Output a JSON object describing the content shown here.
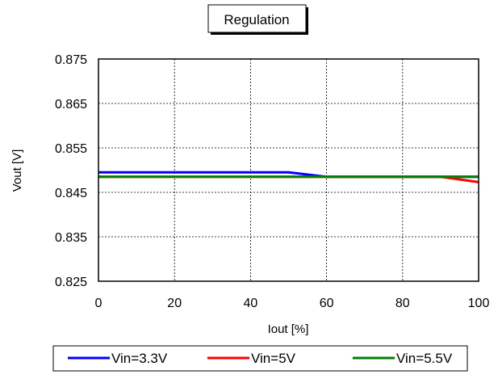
{
  "chart_data": {
    "type": "line",
    "title": "Regulation",
    "xlabel": "Iout [%]",
    "ylabel": "Vout [V]",
    "xlim": [
      0,
      100
    ],
    "ylim": [
      0.825,
      0.875
    ],
    "x_ticks": [
      0,
      20,
      40,
      60,
      80,
      100
    ],
    "y_ticks": [
      0.825,
      0.835,
      0.845,
      0.855,
      0.865,
      0.875
    ],
    "x_tick_labels": [
      "0",
      "20",
      "40",
      "60",
      "80",
      "100"
    ],
    "y_tick_labels": [
      "0.825",
      "0.835",
      "0.845",
      "0.855",
      "0.865",
      "0.875"
    ],
    "grid": true,
    "legend_position": "bottom",
    "series": [
      {
        "name": "Vin=3.3V",
        "color": "#0000ff",
        "x": [
          0,
          10,
          20,
          30,
          40,
          50,
          60,
          70,
          80,
          90,
          100
        ],
        "y": [
          0.8495,
          0.8495,
          0.8495,
          0.8495,
          0.8495,
          0.8495,
          0.8485,
          0.8485,
          0.8485,
          0.8485,
          0.8485
        ]
      },
      {
        "name": "Vin=5V",
        "color": "#ff0000",
        "x": [
          0,
          10,
          20,
          30,
          40,
          50,
          60,
          70,
          80,
          90,
          100
        ],
        "y": [
          0.8485,
          0.8485,
          0.8485,
          0.8485,
          0.8485,
          0.8485,
          0.8485,
          0.8485,
          0.8485,
          0.8485,
          0.8473
        ]
      },
      {
        "name": "Vin=5.5V",
        "color": "#008000",
        "x": [
          0,
          10,
          20,
          30,
          40,
          50,
          60,
          70,
          80,
          90,
          100
        ],
        "y": [
          0.8485,
          0.8485,
          0.8485,
          0.8485,
          0.8485,
          0.8485,
          0.8485,
          0.8485,
          0.8485,
          0.8485,
          0.8485
        ]
      }
    ]
  }
}
